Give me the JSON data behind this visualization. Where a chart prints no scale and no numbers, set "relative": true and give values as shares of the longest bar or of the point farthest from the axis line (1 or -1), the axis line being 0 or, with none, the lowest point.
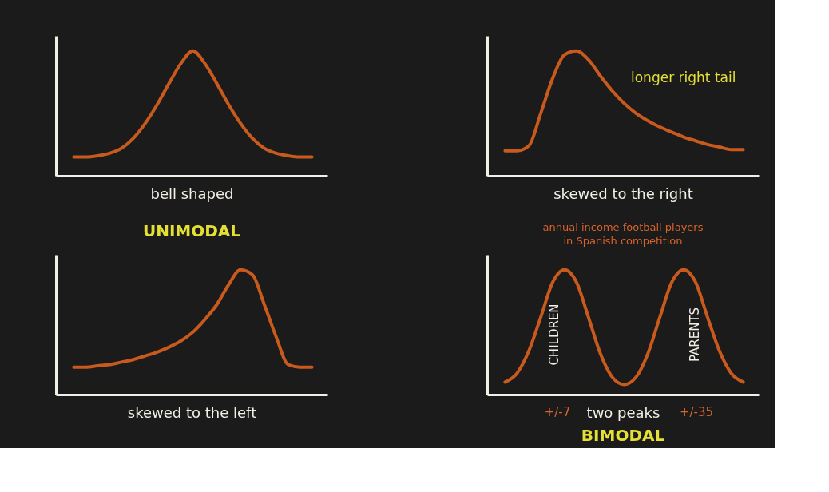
{
  "chart_data": [
    {
      "type": "line",
      "categories": [
        null,
        null,
        null,
        null,
        null,
        null,
        null,
        null,
        null,
        null,
        null,
        null,
        null,
        null,
        null,
        null,
        null,
        null,
        null,
        null,
        null
      ],
      "values": [
        0.15,
        0.15,
        0.16,
        0.18,
        0.22,
        0.3,
        0.42,
        0.57,
        0.74,
        0.9,
        1.0,
        0.9,
        0.74,
        0.57,
        0.42,
        0.3,
        0.22,
        0.18,
        0.16,
        0.15,
        0.15
      ],
      "color": "#c95a1e",
      "relative": true,
      "tick_labels": false,
      "xlabel": "bell shaped",
      "annotations": [
        "UNIMODAL"
      ]
    },
    {
      "type": "line",
      "categories": [
        null,
        null,
        null,
        null,
        null,
        null,
        null,
        null,
        null,
        null,
        null,
        null,
        null,
        null,
        null,
        null,
        null,
        null,
        null,
        null,
        null
      ],
      "values": [
        0.2,
        0.2,
        0.24,
        0.5,
        0.78,
        0.97,
        1.0,
        0.93,
        0.8,
        0.68,
        0.58,
        0.5,
        0.44,
        0.39,
        0.35,
        0.31,
        0.28,
        0.25,
        0.23,
        0.21,
        0.21
      ],
      "color": "#c95a1e",
      "relative": true,
      "tick_labels": false,
      "xlabel": "skewed to the right",
      "annotations": [
        "longer right tail",
        "annual income football players in Spanish competition"
      ]
    },
    {
      "type": "line",
      "categories": [
        null,
        null,
        null,
        null,
        null,
        null,
        null,
        null,
        null,
        null,
        null,
        null,
        null,
        null,
        null,
        null,
        null,
        null,
        null,
        null,
        null
      ],
      "values": [
        0.22,
        0.22,
        0.23,
        0.24,
        0.26,
        0.28,
        0.31,
        0.34,
        0.38,
        0.43,
        0.5,
        0.6,
        0.72,
        0.88,
        1.0,
        0.96,
        0.72,
        0.46,
        0.24,
        0.22,
        0.22
      ],
      "color": "#c95a1e",
      "relative": true,
      "tick_labels": false,
      "xlabel": "skewed to the left"
    },
    {
      "type": "line",
      "categories": [
        null,
        null,
        null,
        null,
        null,
        null,
        null,
        null,
        null,
        null,
        null,
        null,
        null,
        null,
        null,
        null,
        null,
        null,
        null,
        null,
        null
      ],
      "values": [
        0.1,
        0.17,
        0.35,
        0.62,
        0.9,
        1.0,
        0.9,
        0.62,
        0.33,
        0.14,
        0.08,
        0.14,
        0.33,
        0.62,
        0.9,
        1.0,
        0.9,
        0.62,
        0.35,
        0.17,
        0.1
      ],
      "color": "#c95a1e",
      "relative": true,
      "tick_labels": false,
      "xlabel": "two peaks",
      "annotations": [
        "+/-7",
        "+/-35",
        "BIMODAL",
        "CHILDREN",
        "PARENTS"
      ]
    }
  ]
}
